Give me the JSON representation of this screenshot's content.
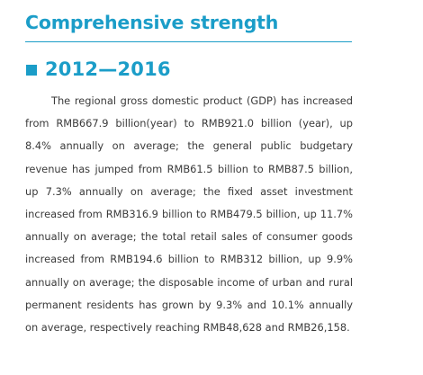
{
  "header": {
    "title": "Comprehensive strength"
  },
  "section": {
    "title": "2012—2016",
    "paragraph": "The regional gross domestic product (GDP) has increased from RMB667.9 billion(year) to RMB921.0 billion (year), up 8.4% annually on average; the general public budgetary revenue has jumped from RMB61.5 billion to RMB87.5 billion, up 7.3% annually on average; the fixed asset investment increased from RMB316.9 billion to RMB479.5 billion, up 11.7% annually on average; the total retail sales of consumer goods increased from RMB194.6 billion to RMB312 billion, up 9.9% annually on average; the disposable income of urban and rural permanent residents has grown by 9.3% and 10.1% annually on average, respectively reaching RMB48,628 and RMB26,158."
  },
  "colors": {
    "accent": "#1b9dc8",
    "body_text": "#3a3a3a",
    "background": "#ffffff"
  }
}
